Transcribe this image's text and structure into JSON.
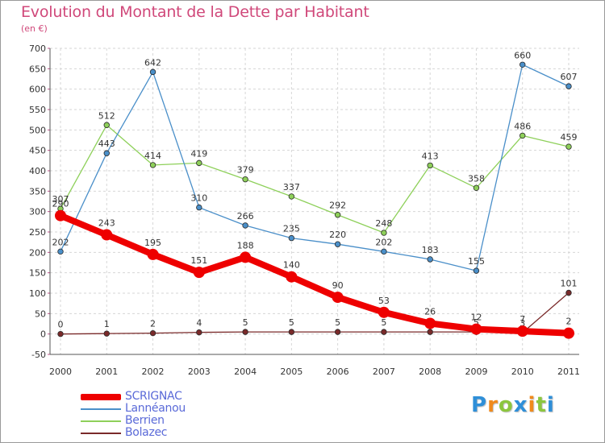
{
  "title": "Evolution du Montant de la Dette par Habitant",
  "unit_label": "(en €)",
  "logo": {
    "text": "Proxiti",
    "letters": [
      {
        "ch": "P",
        "color": "#2f8fd8"
      },
      {
        "ch": "r",
        "color": "#f08a1c"
      },
      {
        "ch": "o",
        "color": "#8cc63e"
      },
      {
        "ch": "x",
        "color": "#2f8fd8"
      },
      {
        "ch": "i",
        "color": "#f08a1c"
      },
      {
        "ch": "t",
        "color": "#8cc63e"
      },
      {
        "ch": "i",
        "color": "#2f8fd8"
      }
    ]
  },
  "chart_data": {
    "type": "line",
    "title": "Evolution du Montant de la Dette par Habitant",
    "ylabel": "(en €)",
    "xlabel": "",
    "x": [
      "2000",
      "2001",
      "2002",
      "2003",
      "2004",
      "2005",
      "2006",
      "2007",
      "2008",
      "2009",
      "2010",
      "2011"
    ],
    "ylim": [
      -50,
      700
    ],
    "yticks": [
      -50,
      0,
      50,
      100,
      150,
      200,
      250,
      300,
      350,
      400,
      450,
      500,
      550,
      600,
      650,
      700
    ],
    "grid": true,
    "legend_position": "bottom-left",
    "series": [
      {
        "name": "SCRIGNAC",
        "color": "#ee0000",
        "values": [
          290,
          243,
          195,
          151,
          188,
          140,
          90,
          53,
          26,
          12,
          7,
          2
        ],
        "labels": [
          "290",
          "243",
          "195",
          "151",
          "188",
          "140",
          "90",
          "53",
          "26",
          "12",
          "7",
          "2"
        ]
      },
      {
        "name": "Lannéanou",
        "color": "#4a8fc9",
        "values": [
          202,
          443,
          642,
          310,
          266,
          235,
          220,
          202,
          183,
          155,
          660,
          607
        ],
        "labels": [
          "202",
          "443",
          "642",
          "310",
          "266",
          "235",
          "220",
          "202",
          "183",
          "155",
          "660",
          "607"
        ]
      },
      {
        "name": "Berrien",
        "color": "#8ed05a",
        "values": [
          307,
          512,
          414,
          419,
          379,
          337,
          292,
          248,
          413,
          358,
          486,
          459
        ],
        "labels": [
          "307",
          "512",
          "414",
          "419",
          "379",
          "337",
          "292",
          "248",
          "413",
          "358",
          "486",
          "459"
        ]
      },
      {
        "name": "Bolazec",
        "color": "#7a2a2a",
        "values": [
          0,
          1,
          2,
          4,
          5,
          5,
          5,
          5,
          5,
          5,
          3,
          101
        ],
        "labels": [
          "0",
          "1",
          "2",
          "4",
          "5",
          "5",
          "5",
          "5",
          "5",
          "5",
          "3",
          "101"
        ]
      }
    ]
  }
}
